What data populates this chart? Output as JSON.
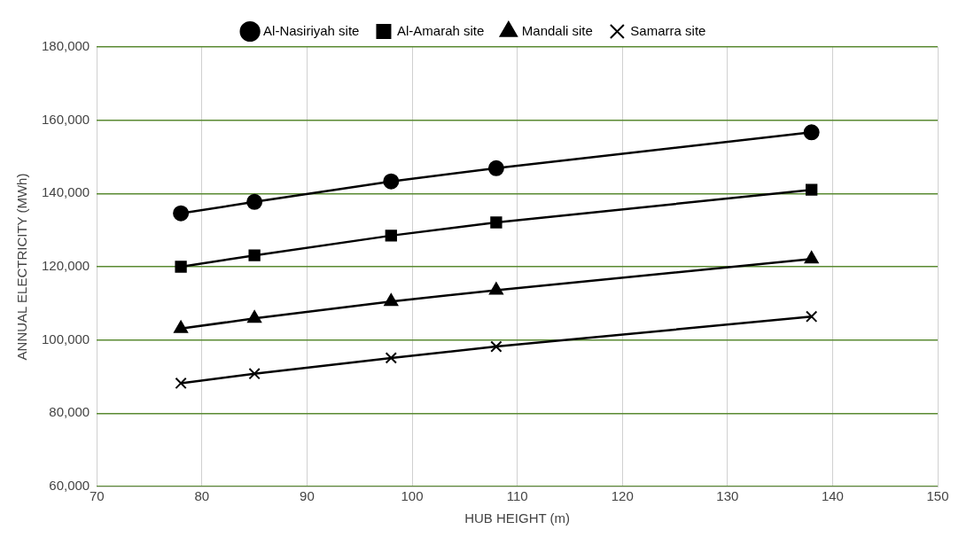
{
  "chart_data": {
    "type": "line",
    "xlabel": "HUB HEIGHT (m)",
    "ylabel": "ANNUAL ELECTRICITY (MWh)",
    "xlim": [
      70,
      150
    ],
    "xticks": [
      70,
      80,
      90,
      100,
      110,
      120,
      130,
      140,
      150
    ],
    "ylim": [
      60000,
      180000
    ],
    "yticks": [
      {
        "value": 60000,
        "label": "60,000"
      },
      {
        "value": 80000,
        "label": "80,000"
      },
      {
        "value": 100000,
        "label": "100,000"
      },
      {
        "value": 120000,
        "label": "120,000"
      },
      {
        "value": 140000,
        "label": "140,000"
      },
      {
        "value": 160000,
        "label": "160,000"
      },
      {
        "value": 180000,
        "label": "180,000"
      }
    ],
    "grid": true,
    "legend": "top",
    "line_style": "solid",
    "x": [
      78,
      85,
      98,
      108,
      138
    ],
    "series": [
      {
        "name": "Al-Nasiriyah site",
        "color": "#000000",
        "marker": "circle",
        "values": [
          134600,
          137700,
          143300,
          146900,
          156700
        ]
      },
      {
        "name": "Al-Amarah site",
        "color": "#000000",
        "marker": "square",
        "values": [
          120000,
          123100,
          128500,
          132100,
          141000
        ]
      },
      {
        "name": "Mandali site",
        "color": "#000000",
        "marker": "triangle",
        "values": [
          103100,
          105900,
          110500,
          113600,
          122100
        ]
      },
      {
        "name": "Samarra site",
        "color": "#000000",
        "marker": "cross",
        "values": [
          88200,
          90800,
          95100,
          98200,
          106400
        ]
      }
    ]
  }
}
